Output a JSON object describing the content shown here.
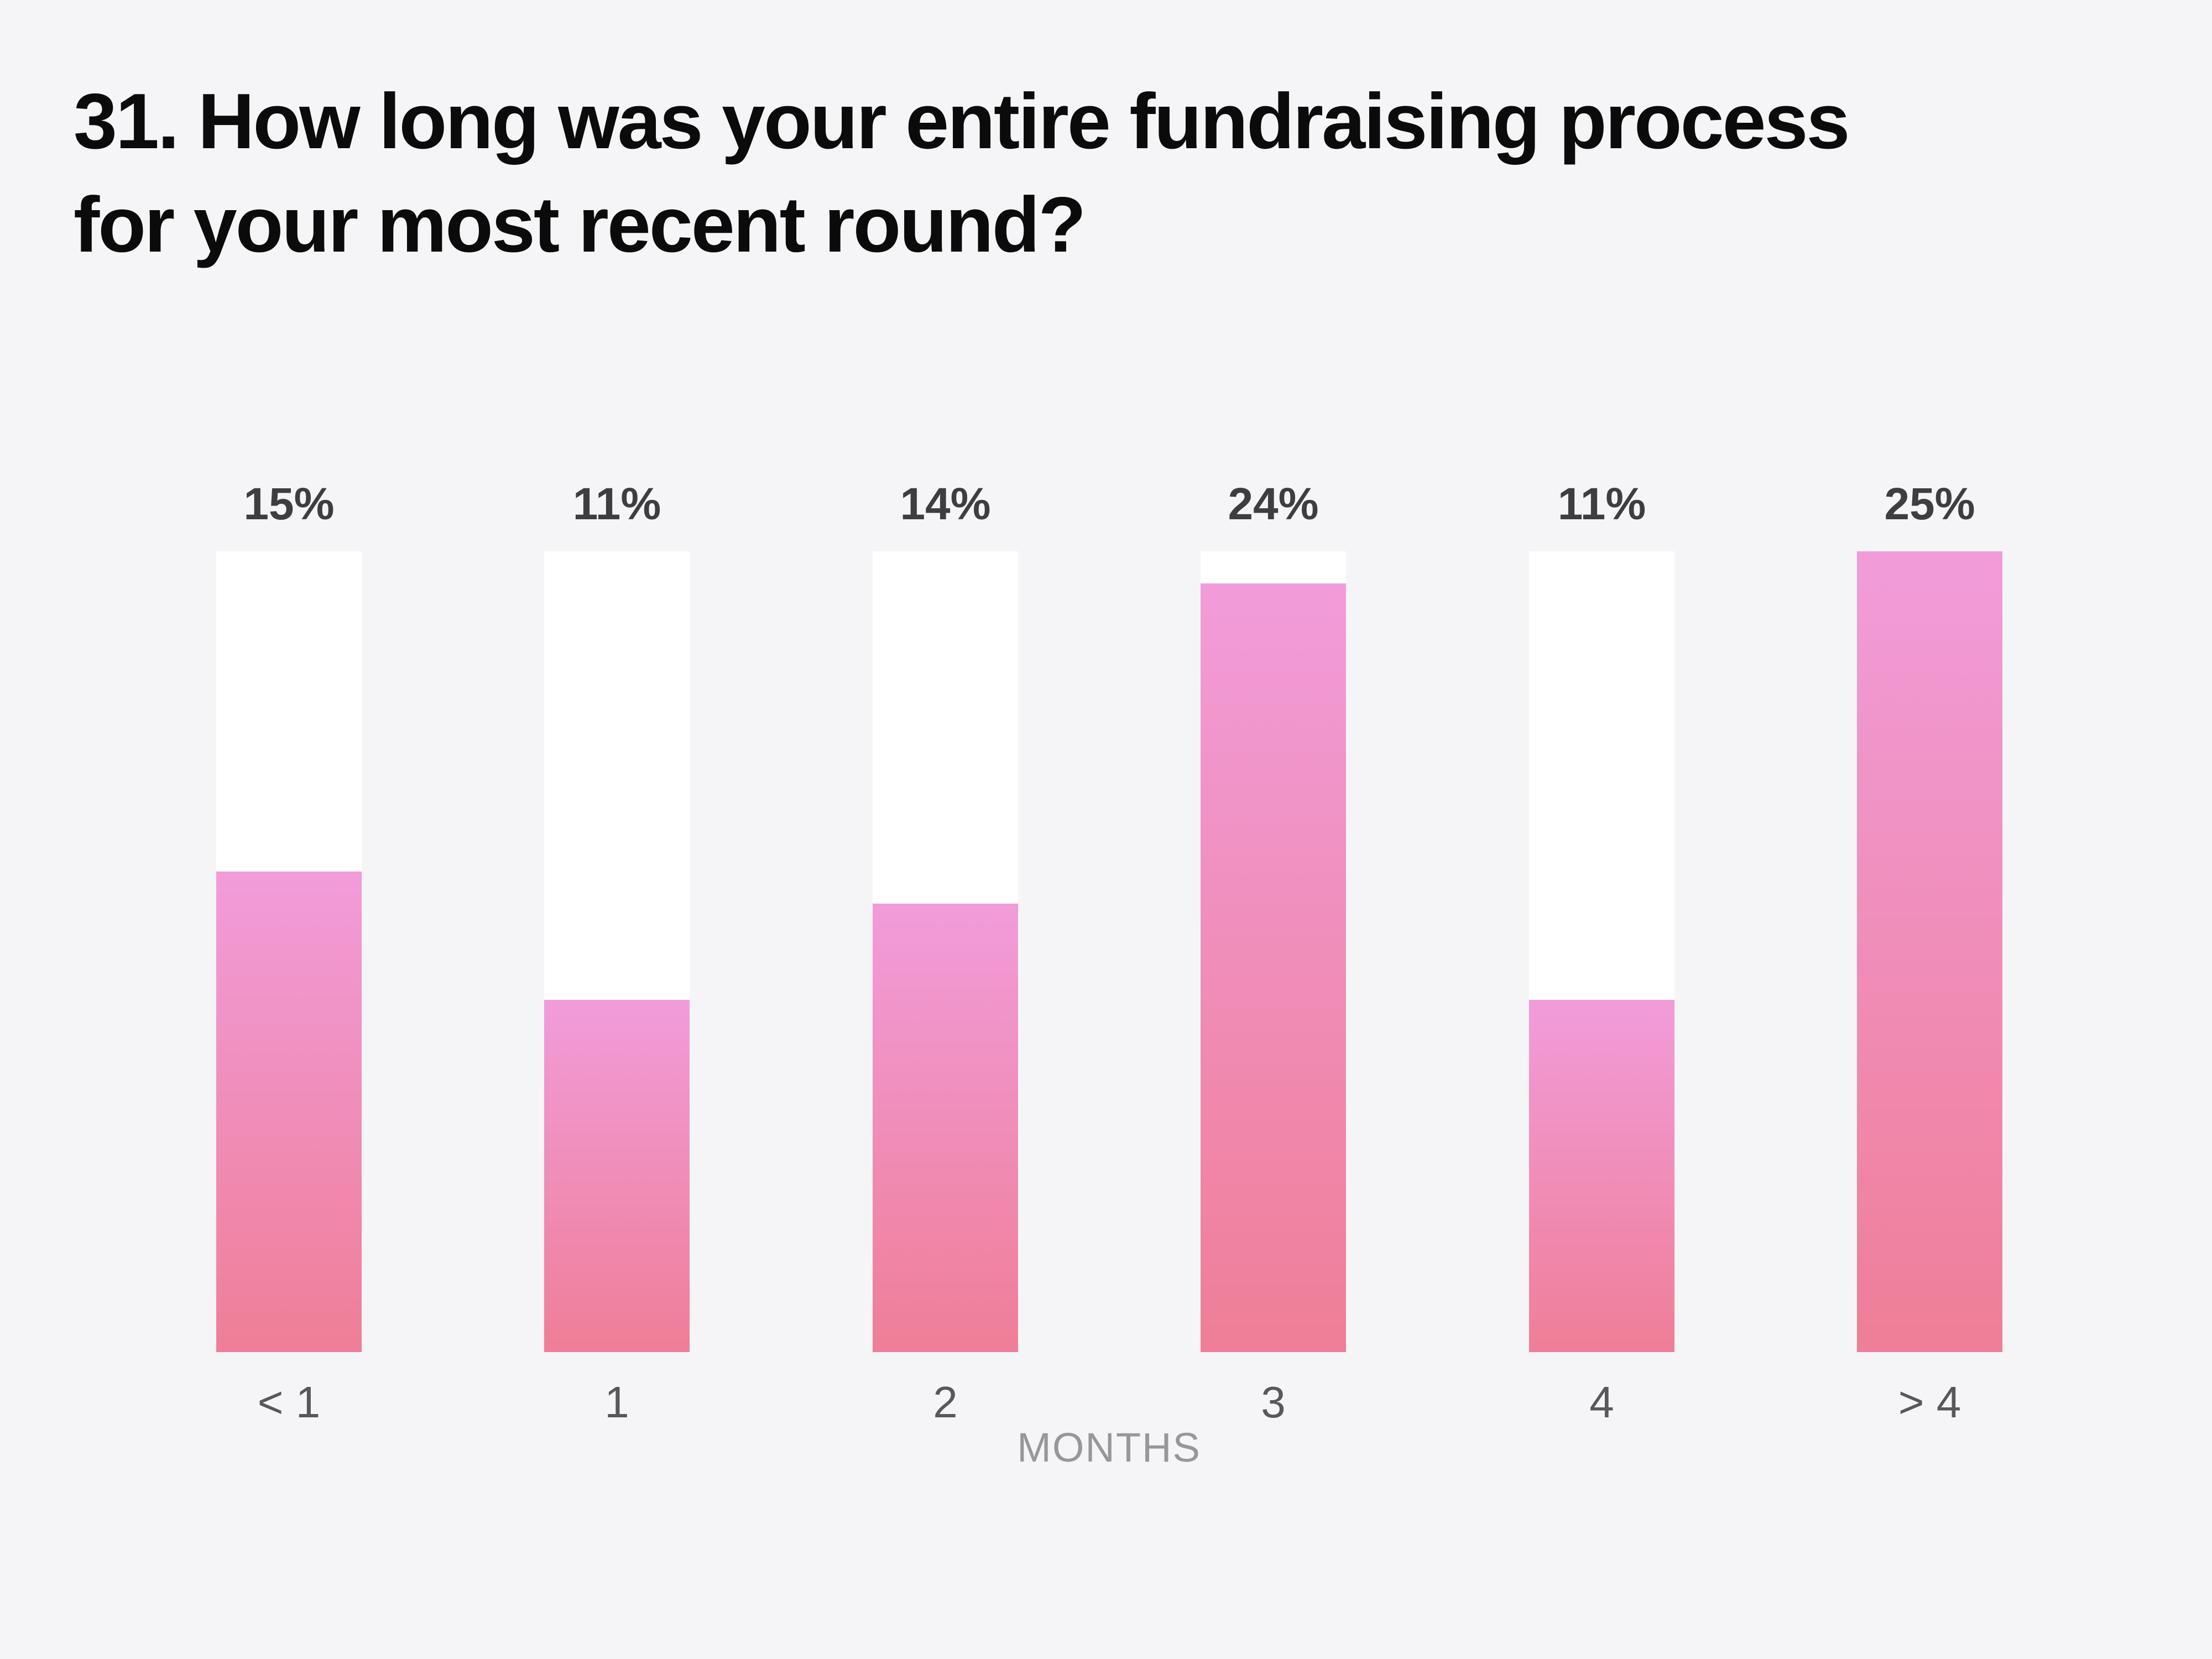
{
  "page": {
    "background_color": "#f5f5f7"
  },
  "header": {
    "title": "31. How long was your entire fundraising process for your most recent round?",
    "title_line1": "31. How long was your entire fundraising process",
    "title_line2": "for your most recent round?",
    "title_color": "#0b0b0c"
  },
  "chart_data": {
    "type": "bar",
    "title": "31. How long was your entire fundraising process for your most recent round?",
    "categories": [
      "< 1",
      "1",
      "2",
      "3",
      "4",
      "> 4"
    ],
    "values": [
      15,
      11,
      14,
      24,
      11,
      25
    ],
    "value_labels": [
      "15%",
      "11%",
      "14%",
      "24%",
      "11%",
      "25%"
    ],
    "unit": "%",
    "xlabel": "MONTHS",
    "ylabel": "",
    "ylim": [
      0,
      25
    ],
    "grid": false,
    "legend": "none",
    "bar_track_color": "#ffffff",
    "bar_gradient_top": "#f19cda",
    "bar_gradient_bottom": "#ef7e97",
    "value_label_color": "#3e3e40",
    "tick_label_color": "#58585c",
    "xlabel_color": "#97979b",
    "background_color": "#f5f5f7"
  }
}
